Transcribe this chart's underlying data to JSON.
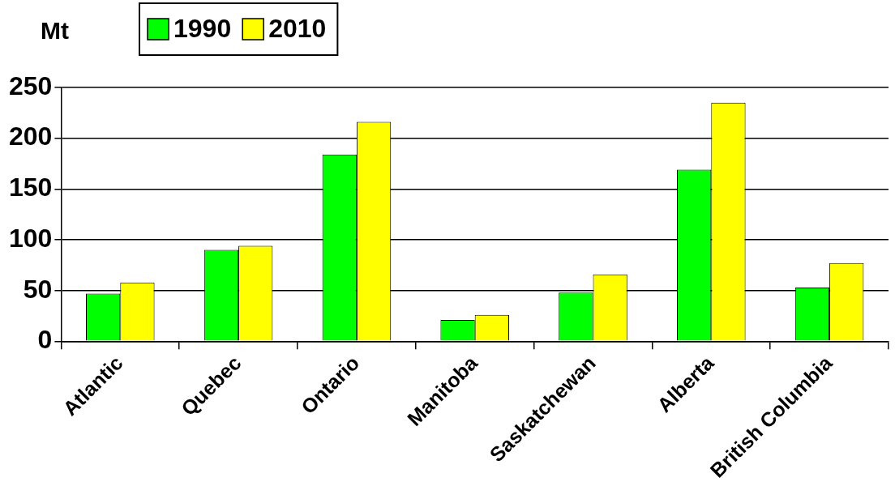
{
  "chart_data": {
    "type": "bar",
    "ylabel": "Mt",
    "categories": [
      "Atlantic",
      "Quebec",
      "Ontario",
      "Manitoba",
      "Saskatchewan",
      "Alberta",
      "British Columbia"
    ],
    "series": [
      {
        "name": "1990",
        "color": "#00ff00",
        "values": [
          47,
          90,
          184,
          21,
          48,
          169,
          53
        ]
      },
      {
        "name": "2010",
        "color": "#ffff00",
        "values": [
          58,
          94,
          216,
          26,
          66,
          235,
          77
        ]
      }
    ],
    "ylim": [
      0,
      250
    ],
    "yticks": [
      0,
      50,
      100,
      150,
      200,
      250
    ],
    "grid": "y",
    "legend": "top left"
  }
}
